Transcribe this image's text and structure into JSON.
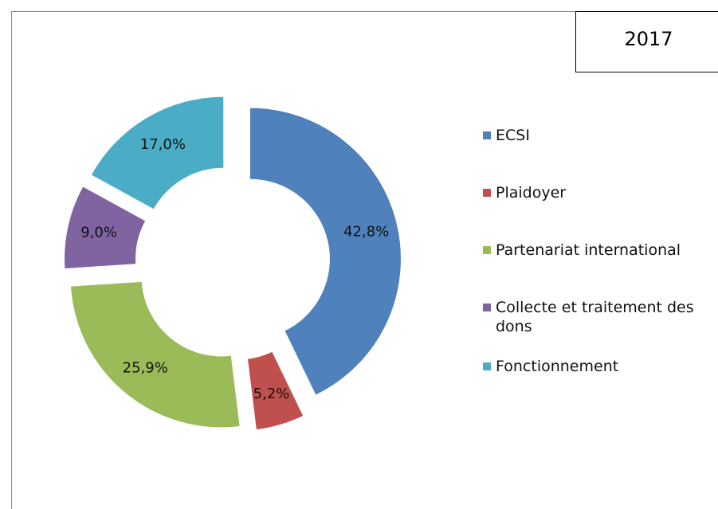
{
  "chart_data": {
    "type": "donut",
    "title": "2017",
    "categories": [
      "ECSI",
      "Plaidoyer",
      "Partenariat international",
      "Collecte et traitement des dons",
      "Fonctionnement"
    ],
    "values": [
      42.8,
      5.2,
      25.9,
      9.0,
      17.0
    ],
    "value_labels": [
      "42,8%",
      "5,2%",
      "25,9%",
      "9,0%",
      "17,0%"
    ],
    "colors": [
      "#4f81bd",
      "#c0504d",
      "#9bbb59",
      "#8064a2",
      "#4bacc6"
    ],
    "legend": "right"
  }
}
